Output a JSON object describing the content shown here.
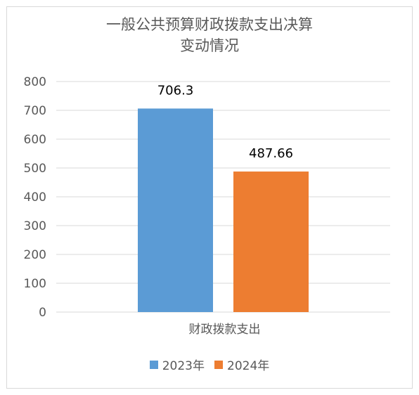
{
  "chart_data": {
    "type": "bar",
    "title": "一般公共预算财政拨款支出决算变动情况",
    "title_lines": [
      "一般公共预算财政拨款支出决算",
      "变动情况"
    ],
    "categories": [
      "财政拨款支出"
    ],
    "series": [
      {
        "name": "2023年",
        "values": [
          706.3
        ],
        "label": "706.3",
        "color": "#5b9bd5"
      },
      {
        "name": "2024年",
        "values": [
          487.66
        ],
        "label": "487.66",
        "color": "#ed7d31"
      }
    ],
    "ylim": [
      0,
      800
    ],
    "yticks": [
      "0",
      "100",
      "200",
      "300",
      "400",
      "500",
      "600",
      "700",
      "800"
    ],
    "grid": true,
    "legend_position": "bottom"
  }
}
